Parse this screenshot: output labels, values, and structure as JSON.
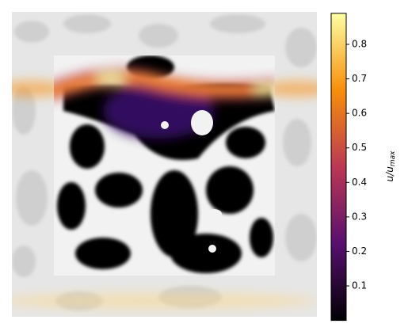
{
  "chart_data": {
    "type": "heatmap",
    "colorbar": {
      "label": "u/u",
      "label_subscript": "max",
      "clim": [
        0,
        0.89
      ],
      "ticks": [
        0.1,
        0.2,
        0.3,
        0.4,
        0.5,
        0.6,
        0.7,
        0.8
      ],
      "colors": [
        "#000004",
        "#57106e",
        "#bc3754",
        "#f98e09",
        "#fcffa4"
      ]
    }
  }
}
